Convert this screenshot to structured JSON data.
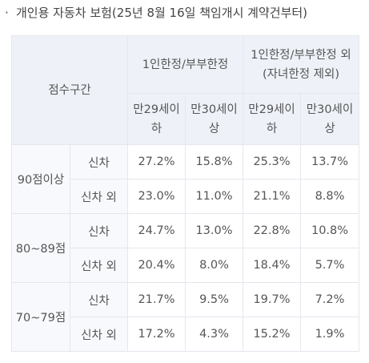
{
  "caption": "개인용 자동차 보험(25년 8월 16일 책임개시 계약건부터)",
  "table": {
    "corner_label": "점수구간",
    "groups": [
      "1인한정/부부한정",
      "1인한정/부부한정 외\n(자녀한정 제외)"
    ],
    "subheaders": [
      "만29세이\n하",
      "만30세이\n상",
      "만29세이\n하",
      "만30세이\n상"
    ],
    "rows": [
      {
        "band": "90점이상",
        "type": "신차",
        "values": [
          "27.2%",
          "15.8%",
          "25.3%",
          "13.7%"
        ]
      },
      {
        "band": "90점이상",
        "type": "신차 외",
        "values": [
          "23.0%",
          "11.0%",
          "21.1%",
          "8.8%"
        ]
      },
      {
        "band": "80~89점",
        "type": "신차",
        "values": [
          "24.7%",
          "13.0%",
          "22.8%",
          "10.8%"
        ]
      },
      {
        "band": "80~89점",
        "type": "신차 외",
        "values": [
          "20.4%",
          "8.0%",
          "18.4%",
          "5.7%"
        ]
      },
      {
        "band": "70~79점",
        "type": "신차",
        "values": [
          "21.7%",
          "9.5%",
          "19.7%",
          "7.2%"
        ]
      },
      {
        "band": "70~79점",
        "type": "신차 외",
        "values": [
          "17.2%",
          "4.3%",
          "15.2%",
          "1.9%"
        ]
      }
    ]
  }
}
